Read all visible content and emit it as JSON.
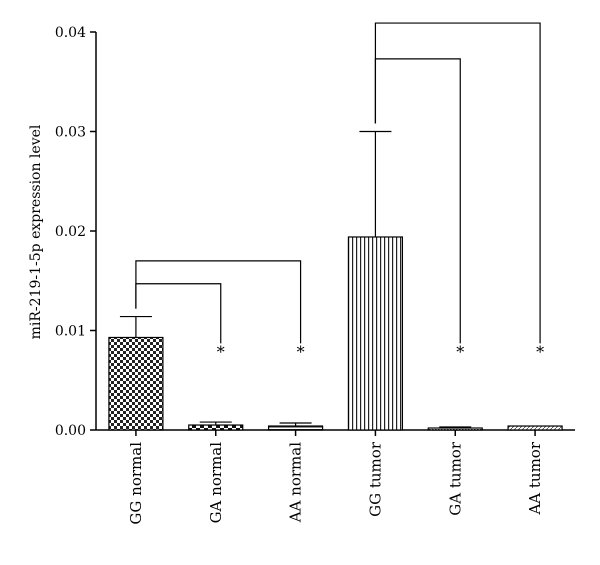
{
  "chart_data": {
    "type": "bar",
    "title": "",
    "xlabel": "",
    "ylabel": "miR-219-1-5p expression level",
    "ylim": [
      0,
      0.04
    ],
    "yticks": [
      "0.00",
      "0.01",
      "0.02",
      "0.03",
      "0.04"
    ],
    "categories": [
      "GG normal",
      "GA normal",
      "AA normal",
      "GG tumor",
      "GA tumor",
      "AA tumor"
    ],
    "values": [
      0.0093,
      0.0005,
      0.0004,
      0.0194,
      0.0002,
      0.0004
    ],
    "error_upper": [
      0.0114,
      0.0008,
      0.0007,
      0.03,
      0.0003,
      0.0004
    ],
    "significance": [
      "",
      "*",
      "*",
      "",
      "*",
      "*"
    ],
    "comparisons": [
      {
        "from": "GG normal",
        "to": "GA normal",
        "y": 0.0147
      },
      {
        "from": "GG normal",
        "to": "AA normal",
        "y": 0.017
      },
      {
        "from": "GG tumor",
        "to": "GA tumor",
        "y": 0.0373
      },
      {
        "from": "GG tumor",
        "to": "AA tumor",
        "y": 0.0409
      }
    ],
    "patterns": [
      "checker",
      "checker-coarse",
      "hstripe",
      "vstripe",
      "dense",
      "diag"
    ],
    "grid": false,
    "legend": "none"
  }
}
